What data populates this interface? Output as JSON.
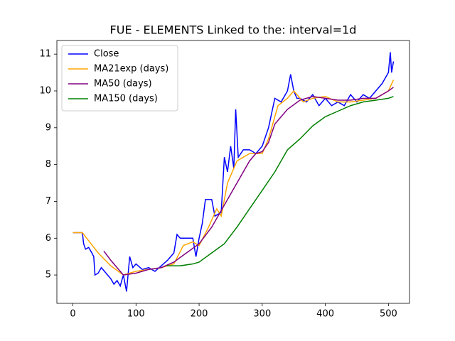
{
  "chart_data": {
    "type": "line",
    "title": "FUE - ELEMENTS Linked to the: interval=1d",
    "xlim": [
      -25.4,
      533.4
    ],
    "ylim": [
      4.23,
      11.37
    ],
    "xticks": [
      0,
      100,
      200,
      300,
      400,
      500
    ],
    "yticks": [
      5,
      6,
      7,
      8,
      9,
      10,
      11
    ],
    "legend": "upper left",
    "series": [
      {
        "name": "Close",
        "color": "#0000ff",
        "x": [
          0,
          15,
          17,
          20,
          25,
          30,
          33,
          35,
          40,
          45,
          50,
          55,
          60,
          65,
          70,
          75,
          80,
          85,
          90,
          95,
          100,
          110,
          120,
          130,
          140,
          150,
          160,
          165,
          170,
          180,
          190,
          195,
          200,
          205,
          210,
          220,
          225,
          235,
          240,
          245,
          250,
          255,
          258,
          262,
          270,
          280,
          290,
          300,
          310,
          320,
          330,
          340,
          345,
          350,
          355,
          360,
          370,
          380,
          390,
          400,
          410,
          420,
          430,
          440,
          450,
          460,
          470,
          480,
          490,
          500,
          503,
          505,
          508
        ],
        "values": [
          6.15,
          6.15,
          5.85,
          5.7,
          5.75,
          5.6,
          5.5,
          5.0,
          5.05,
          5.2,
          5.1,
          5.0,
          4.9,
          4.75,
          4.85,
          4.7,
          5.0,
          4.55,
          5.5,
          5.2,
          5.3,
          5.15,
          5.2,
          5.1,
          5.25,
          5.4,
          5.6,
          6.1,
          6.0,
          6.0,
          6.0,
          5.5,
          6.0,
          6.4,
          7.05,
          7.05,
          6.6,
          6.7,
          8.2,
          7.8,
          8.5,
          7.9,
          9.5,
          8.2,
          8.4,
          8.4,
          8.3,
          8.5,
          9.0,
          9.8,
          9.7,
          10.0,
          10.45,
          10.0,
          9.8,
          9.8,
          9.7,
          9.9,
          9.6,
          9.8,
          9.6,
          9.7,
          9.6,
          9.9,
          9.7,
          9.9,
          9.8,
          10.0,
          10.2,
          10.5,
          11.05,
          10.5,
          10.8
        ]
      },
      {
        "name": "MA21exp (days)",
        "color": "#ffa500",
        "x": [
          0,
          15,
          40,
          60,
          80,
          100,
          140,
          160,
          175,
          190,
          200,
          215,
          228,
          235,
          245,
          260,
          280,
          300,
          310,
          325,
          340,
          350,
          365,
          380,
          400,
          420,
          440,
          460,
          480,
          500,
          508
        ],
        "values": [
          6.15,
          6.15,
          5.6,
          5.25,
          5.0,
          5.1,
          5.2,
          5.3,
          5.8,
          5.9,
          5.8,
          6.3,
          6.8,
          6.6,
          7.5,
          8.1,
          8.3,
          8.3,
          8.7,
          9.6,
          9.8,
          10.0,
          9.7,
          9.8,
          9.85,
          9.7,
          9.7,
          9.75,
          9.8,
          10.0,
          10.3
        ]
      },
      {
        "name": "MA50 (days)",
        "color": "#800080",
        "x": [
          49,
          60,
          80,
          100,
          120,
          140,
          160,
          180,
          200,
          220,
          240,
          260,
          270,
          280,
          290,
          300,
          310,
          320,
          340,
          360,
          380,
          400,
          420,
          440,
          460,
          480,
          500,
          508
        ],
        "values": [
          5.65,
          5.4,
          5.0,
          5.05,
          5.15,
          5.2,
          5.35,
          5.6,
          5.85,
          6.3,
          6.9,
          7.5,
          7.8,
          8.1,
          8.3,
          8.35,
          8.6,
          9.1,
          9.5,
          9.75,
          9.85,
          9.8,
          9.75,
          9.75,
          9.8,
          9.8,
          10.0,
          10.1
        ]
      },
      {
        "name": "MA150 (days)",
        "color": "#008000",
        "x": [
          149,
          170,
          190,
          200,
          220,
          240,
          260,
          280,
          300,
          320,
          340,
          360,
          380,
          400,
          420,
          440,
          460,
          480,
          500,
          508
        ],
        "values": [
          5.25,
          5.25,
          5.3,
          5.35,
          5.6,
          5.85,
          6.3,
          6.8,
          7.3,
          7.8,
          8.4,
          8.7,
          9.05,
          9.3,
          9.45,
          9.6,
          9.7,
          9.75,
          9.8,
          9.85
        ]
      }
    ]
  }
}
